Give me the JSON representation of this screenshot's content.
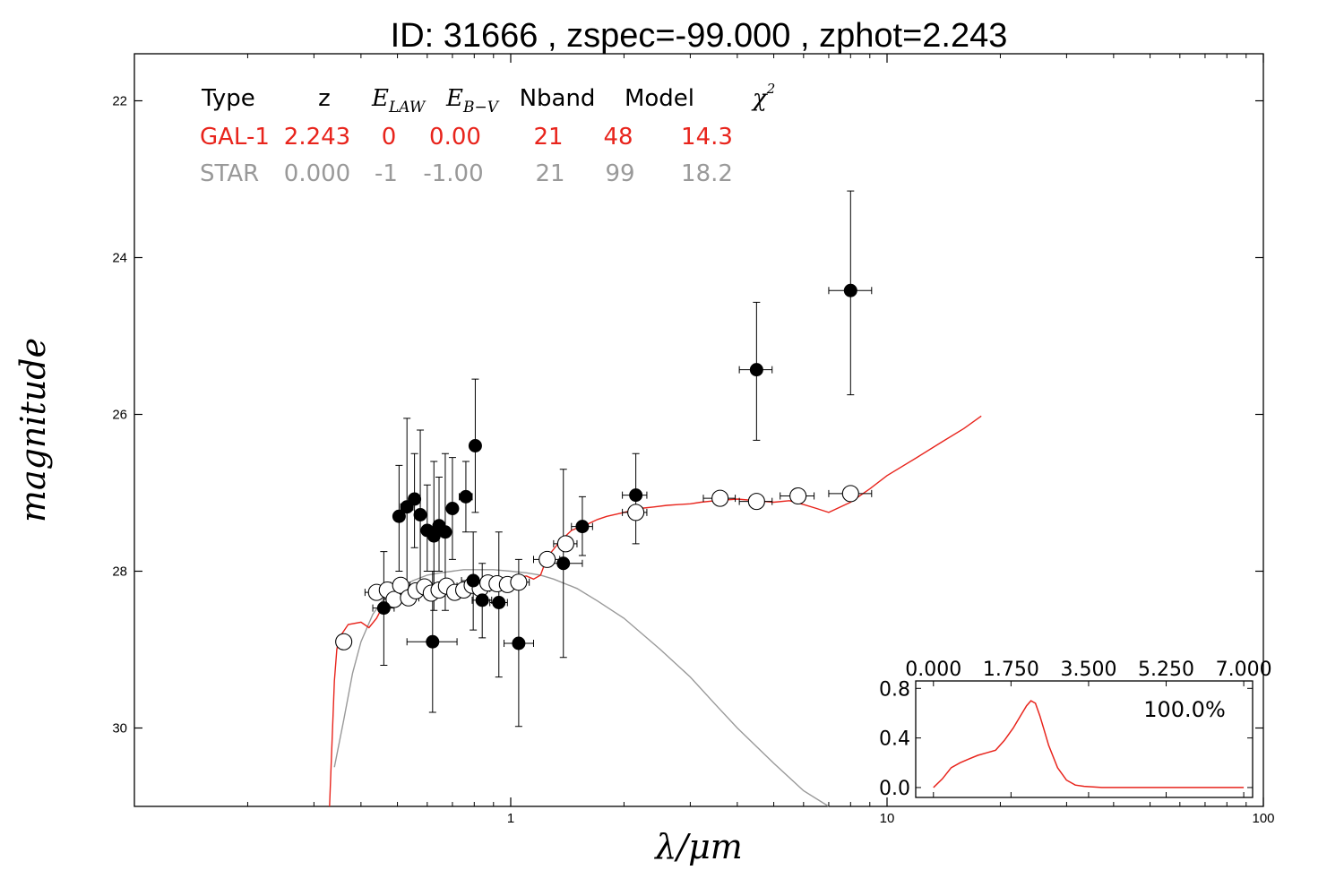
{
  "chart_data": [
    {
      "type": "scatter",
      "title": "ID:  31666 , zspec=-99.000 , zphot=2.243",
      "xlabel": "λ/μm",
      "ylabel": "magnitude",
      "xscale": "log",
      "xlim": [
        0.1,
        100
      ],
      "ylim": [
        31.0,
        21.4
      ],
      "y_inverted": true,
      "x_ticks": [
        {
          "value": 1,
          "label": "1"
        },
        {
          "value": 10,
          "label": "10"
        },
        {
          "value": 100,
          "label": "100"
        }
      ],
      "y_ticks": [
        {
          "value": 22,
          "label": "22"
        },
        {
          "value": 24,
          "label": "24"
        },
        {
          "value": 26,
          "label": "26"
        },
        {
          "value": 28,
          "label": "28"
        },
        {
          "value": 30,
          "label": "30"
        }
      ],
      "grid": false,
      "fit_table": {
        "headers": {
          "type": "Type",
          "z": "z",
          "elaw": "E",
          "elaw_sub": "LAW",
          "ebv": "E",
          "ebv_sub": "B−V",
          "nband": "Nband",
          "model": "Model",
          "chi": "χ",
          "chi_sup": "2"
        },
        "rows": [
          {
            "type": "GAL-1",
            "z": "2.243",
            "elaw": "0",
            "ebv": "0.00",
            "nband": "21",
            "model": "48",
            "chi2": "14.3",
            "color": "#e8241c"
          },
          {
            "type": "STAR",
            "z": "0.000",
            "elaw": "-1",
            "ebv": "-1.00",
            "nband": "21",
            "model": "99",
            "chi2": "18.2",
            "color": "#999999"
          }
        ]
      },
      "observed_points": {
        "color": "#000000",
        "points": [
          {
            "x": 0.46,
            "y": 28.47,
            "xerr": [
              0.43,
              0.49
            ],
            "yerr": [
              27.75,
              29.2
            ]
          },
          {
            "x": 0.505,
            "y": 27.3,
            "xerr": [
              0.49,
              0.52
            ],
            "yerr": [
              26.65,
              28.0
            ]
          },
          {
            "x": 0.53,
            "y": 27.18,
            "xerr": [
              0.51,
              0.55
            ],
            "yerr": [
              26.05,
              28.35
            ]
          },
          {
            "x": 0.555,
            "y": 27.08,
            "xerr": [
              0.54,
              0.57
            ],
            "yerr": [
              26.5,
              27.7
            ]
          },
          {
            "x": 0.575,
            "y": 27.28,
            "xerr": [
              0.56,
              0.59
            ],
            "yerr": [
              26.2,
              28.3
            ]
          },
          {
            "x": 0.6,
            "y": 27.48,
            "xerr": [
              0.59,
              0.61
            ],
            "yerr": [
              26.9,
              28.0
            ]
          },
          {
            "x": 0.62,
            "y": 28.9,
            "xerr": [
              0.53,
              0.72
            ],
            "yerr": [
              28.0,
              29.8
            ]
          },
          {
            "x": 0.625,
            "y": 27.55,
            "xerr": [
              0.61,
              0.64
            ],
            "yerr": [
              26.6,
              28.5
            ]
          },
          {
            "x": 0.645,
            "y": 27.42,
            "xerr": [
              0.63,
              0.66
            ],
            "yerr": [
              26.8,
              28.0
            ]
          },
          {
            "x": 0.67,
            "y": 27.5,
            "xerr": [
              0.65,
              0.69
            ],
            "yerr": [
              26.5,
              28.5
            ]
          },
          {
            "x": 0.7,
            "y": 27.2,
            "xerr": [
              0.68,
              0.72
            ],
            "yerr": [
              26.55,
              27.85
            ]
          },
          {
            "x": 0.76,
            "y": 27.05,
            "xerr": [
              0.73,
              0.79
            ],
            "yerr": [
              26.6,
              27.5
            ]
          },
          {
            "x": 0.795,
            "y": 28.12,
            "xerr": [
              0.74,
              0.85
            ],
            "yerr": [
              27.5,
              28.75
            ]
          },
          {
            "x": 0.805,
            "y": 26.4,
            "xerr": [
              0.79,
              0.82
            ],
            "yerr": [
              25.55,
              27.25
            ]
          },
          {
            "x": 0.84,
            "y": 28.37,
            "xerr": [
              0.79,
              0.89
            ],
            "yerr": [
              27.9,
              28.85
            ]
          },
          {
            "x": 0.93,
            "y": 28.4,
            "xerr": [
              0.88,
              0.98
            ],
            "yerr": [
              27.5,
              29.35
            ]
          },
          {
            "x": 1.05,
            "y": 28.92,
            "xerr": [
              0.96,
              1.15
            ],
            "yerr": [
              27.85,
              29.98
            ]
          },
          {
            "x": 1.38,
            "y": 27.9,
            "xerr": [
              1.22,
              1.55
            ],
            "yerr": [
              26.7,
              29.1
            ]
          },
          {
            "x": 1.55,
            "y": 27.43,
            "xerr": [
              1.45,
              1.65
            ],
            "yerr": [
              27.05,
              27.8
            ]
          },
          {
            "x": 2.15,
            "y": 27.03,
            "xerr": [
              1.98,
              2.3
            ],
            "yerr": [
              26.5,
              27.65
            ]
          },
          {
            "x": 4.5,
            "y": 25.43,
            "xerr": [
              4.05,
              4.95
            ],
            "yerr": [
              24.57,
              26.33
            ]
          },
          {
            "x": 8.0,
            "y": 24.42,
            "xerr": [
              7.0,
              9.1
            ],
            "yerr": [
              23.15,
              25.75
            ]
          }
        ]
      },
      "model_points": {
        "color": "#ffffff",
        "edge": "#000000",
        "points": [
          {
            "x": 0.36,
            "y": 28.9,
            "xerr": [
              0.35,
              0.37
            ]
          },
          {
            "x": 0.44,
            "y": 28.27,
            "xerr": [
              0.41,
              0.47
            ]
          },
          {
            "x": 0.47,
            "y": 28.24,
            "xerr": [
              0.44,
              0.5
            ]
          },
          {
            "x": 0.49,
            "y": 28.36,
            "xerr": [
              0.46,
              0.52
            ]
          },
          {
            "x": 0.51,
            "y": 28.18,
            "xerr": [
              0.48,
              0.54
            ]
          },
          {
            "x": 0.535,
            "y": 28.34,
            "xerr": [
              0.5,
              0.57
            ]
          },
          {
            "x": 0.56,
            "y": 28.25,
            "xerr": [
              0.52,
              0.6
            ]
          },
          {
            "x": 0.59,
            "y": 28.2,
            "xerr": [
              0.55,
              0.63
            ]
          },
          {
            "x": 0.615,
            "y": 28.28,
            "xerr": [
              0.57,
              0.66
            ]
          },
          {
            "x": 0.645,
            "y": 28.24,
            "xerr": [
              0.6,
              0.69
            ]
          },
          {
            "x": 0.675,
            "y": 28.19,
            "xerr": [
              0.63,
              0.72
            ]
          },
          {
            "x": 0.71,
            "y": 28.27,
            "xerr": [
              0.66,
              0.76
            ]
          },
          {
            "x": 0.75,
            "y": 28.24,
            "xerr": [
              0.7,
              0.8
            ]
          },
          {
            "x": 0.79,
            "y": 28.18,
            "xerr": [
              0.74,
              0.84
            ]
          },
          {
            "x": 0.83,
            "y": 28.22,
            "xerr": [
              0.78,
              0.88
            ]
          },
          {
            "x": 0.87,
            "y": 28.15,
            "xerr": [
              0.82,
              0.93
            ]
          },
          {
            "x": 0.92,
            "y": 28.16,
            "xerr": [
              0.86,
              0.98
            ]
          },
          {
            "x": 0.98,
            "y": 28.17,
            "xerr": [
              0.92,
              1.05
            ]
          },
          {
            "x": 1.05,
            "y": 28.14,
            "xerr": [
              0.98,
              1.12
            ]
          },
          {
            "x": 1.25,
            "y": 27.85,
            "xerr": [
              1.15,
              1.35
            ]
          },
          {
            "x": 1.4,
            "y": 27.65,
            "xerr": [
              1.3,
              1.5
            ]
          },
          {
            "x": 2.15,
            "y": 27.25,
            "xerr": [
              1.98,
              2.3
            ]
          },
          {
            "x": 3.6,
            "y": 27.07,
            "xerr": [
              3.25,
              3.95
            ]
          },
          {
            "x": 4.5,
            "y": 27.11,
            "xerr": [
              4.05,
              4.95
            ]
          },
          {
            "x": 5.8,
            "y": 27.04,
            "xerr": [
              5.2,
              6.4
            ]
          },
          {
            "x": 8.0,
            "y": 27.01,
            "xerr": [
              7.0,
              9.1
            ]
          }
        ]
      },
      "galaxy_template": {
        "name": "GAL-1",
        "color": "#e8241c",
        "x": [
          0.33,
          0.335,
          0.34,
          0.345,
          0.35,
          0.37,
          0.4,
          0.42,
          0.44,
          0.46,
          0.5,
          0.55,
          0.6,
          0.65,
          0.7,
          0.75,
          0.8,
          0.85,
          0.9,
          0.95,
          1.0,
          1.05,
          1.1,
          1.15,
          1.2,
          1.25,
          1.3,
          1.35,
          1.4,
          1.45,
          1.5,
          1.6,
          1.7,
          1.8,
          2.0,
          2.2,
          2.4,
          2.6,
          2.8,
          3.0,
          3.2,
          3.5,
          4.0,
          4.5,
          5.0,
          5.5,
          6.0,
          6.5,
          7.0,
          8.0,
          9.0,
          10.0,
          12.0,
          14.0,
          16.0,
          17.8
        ],
        "y": [
          31.0,
          30.2,
          29.4,
          29.0,
          28.85,
          28.68,
          28.65,
          28.72,
          28.6,
          28.42,
          28.33,
          28.3,
          28.26,
          28.23,
          28.2,
          28.18,
          28.16,
          28.15,
          28.14,
          28.12,
          28.1,
          28.08,
          28.06,
          28.1,
          28.05,
          27.82,
          27.72,
          27.62,
          27.55,
          27.48,
          27.45,
          27.4,
          27.34,
          27.3,
          27.25,
          27.2,
          27.18,
          27.16,
          27.15,
          27.14,
          27.12,
          27.1,
          27.08,
          27.1,
          27.12,
          27.1,
          27.15,
          27.2,
          27.25,
          27.12,
          26.95,
          26.78,
          26.55,
          26.35,
          26.18,
          26.02
        ]
      },
      "star_template": {
        "name": "STAR",
        "color": "#999999",
        "x": [
          0.34,
          0.36,
          0.38,
          0.4,
          0.43,
          0.46,
          0.5,
          0.55,
          0.6,
          0.65,
          0.7,
          0.75,
          0.8,
          0.9,
          1.0,
          1.1,
          1.2,
          1.3,
          1.5,
          1.7,
          2.0,
          2.5,
          3.0,
          3.5,
          4.0,
          5.0,
          6.0,
          7.0
        ],
        "y": [
          30.5,
          29.9,
          29.3,
          28.9,
          28.55,
          28.35,
          28.22,
          28.12,
          28.05,
          28.02,
          28.0,
          27.98,
          27.98,
          27.98,
          28.0,
          28.02,
          28.05,
          28.1,
          28.22,
          28.38,
          28.6,
          29.0,
          29.35,
          29.7,
          30.0,
          30.45,
          30.8,
          31.0
        ]
      }
    },
    {
      "type": "line",
      "title": "",
      "xlim": [
        -0.4,
        7.2
      ],
      "ylim": [
        -0.08,
        0.86
      ],
      "x_ticks": [
        {
          "value": 0,
          "label": "0.000"
        },
        {
          "value": 1.75,
          "label": "1.750"
        },
        {
          "value": 3.5,
          "label": "3.500"
        },
        {
          "value": 5.25,
          "label": "5.250"
        },
        {
          "value": 7,
          "label": "7.000"
        }
      ],
      "y_ticks": [
        {
          "value": 0,
          "label": "0.0"
        },
        {
          "value": 0.4,
          "label": "0.4"
        },
        {
          "value": 0.8,
          "label": "0.8"
        }
      ],
      "annotation": "100.0%",
      "series": [
        {
          "color": "#e8241c",
          "x": [
            0.0,
            0.2,
            0.4,
            0.6,
            0.8,
            1.0,
            1.2,
            1.4,
            1.6,
            1.8,
            2.0,
            2.1,
            2.2,
            2.3,
            2.4,
            2.5,
            2.6,
            2.8,
            3.0,
            3.2,
            3.4,
            3.6,
            3.8,
            4.0,
            4.5,
            5.0,
            6.0,
            7.0
          ],
          "y": [
            0.0,
            0.07,
            0.16,
            0.2,
            0.23,
            0.26,
            0.28,
            0.3,
            0.38,
            0.48,
            0.6,
            0.66,
            0.7,
            0.68,
            0.58,
            0.46,
            0.34,
            0.16,
            0.06,
            0.02,
            0.01,
            0.005,
            0.0,
            0.0,
            0.0,
            0.0,
            0.0,
            0.0
          ]
        }
      ]
    }
  ]
}
